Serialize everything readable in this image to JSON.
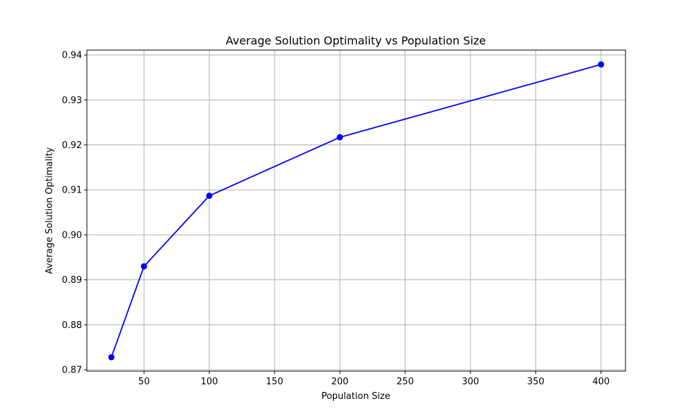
{
  "chart_data": {
    "type": "line",
    "title": "Average Solution Optimality vs Population Size",
    "xlabel": "Population Size",
    "ylabel": "Average Solution Optimality",
    "xlim": [
      6.25,
      418.75
    ],
    "ylim": [
      0.8697,
      0.9411
    ],
    "xticks": [
      50,
      100,
      150,
      200,
      250,
      300,
      350,
      400
    ],
    "yticks": [
      0.87,
      0.88,
      0.89,
      0.9,
      0.91,
      0.92,
      0.93,
      0.94
    ],
    "xtick_labels": [
      "50",
      "100",
      "150",
      "200",
      "250",
      "300",
      "350",
      "400"
    ],
    "ytick_labels": [
      "0.87",
      "0.88",
      "0.89",
      "0.90",
      "0.91",
      "0.92",
      "0.93",
      "0.94"
    ],
    "grid": true,
    "series": [
      {
        "x": [
          25,
          50,
          100,
          200,
          400
        ],
        "y": [
          0.8728,
          0.893,
          0.9087,
          0.9217,
          0.9379
        ],
        "color": "#0000ff",
        "marker": "circle"
      }
    ]
  }
}
